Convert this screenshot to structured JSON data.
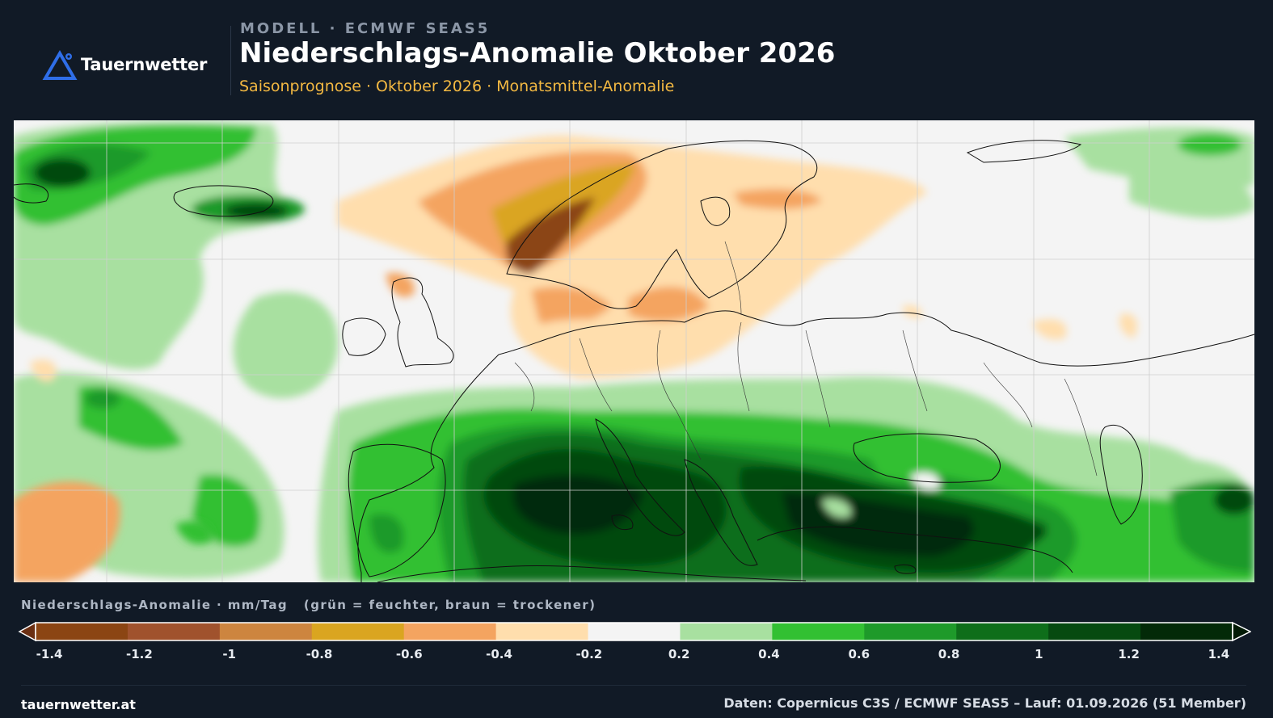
{
  "header": {
    "logo_text": "Tauernwetter",
    "model_label": "MODELL · ECMWF SEAS5",
    "title": "Niederschlags-Anomalie Oktober 2026",
    "subtitle": "Saisonprognose · Oktober 2026 · Monatsmittel-Anomalie"
  },
  "map": {
    "region": "Europe",
    "variable": "precipitation anomaly",
    "wet_regions": [
      "Mediterranean",
      "Italy",
      "Balkans",
      "Greece",
      "Turkey",
      "Black Sea",
      "North Atlantic",
      "Iceland"
    ],
    "dry_regions": [
      "Norway",
      "Scandinavia",
      "Baltic",
      "Poland",
      "Denmark"
    ]
  },
  "legend": {
    "title": "Niederschlags-Anomalie · mm/Tag   (grün = feuchter, braun = trockener)",
    "colors": [
      "#8b4513",
      "#a0522d",
      "#cd853f",
      "#daa520",
      "#f4a460",
      "#ffdead",
      "#f4f4f4",
      "#a8e0a0",
      "#32c032",
      "#1e9a2a",
      "#0e6e1a",
      "#064a10",
      "#032a08"
    ],
    "under_color": "#6b2f12",
    "over_color": "#021a05",
    "tick_labels": [
      "-1.4",
      "-1.2",
      "-1",
      "-0.8",
      "-0.6",
      "-0.4",
      "-0.2",
      "0.2",
      "0.4",
      "0.6",
      "0.8",
      "1",
      "1.2",
      "1.4"
    ]
  },
  "footer": {
    "left": "tauernwetter.at",
    "right": "Daten: Copernicus C3S / ECMWF SEAS5 – Lauf: 01.09.2026 (51 Member)"
  }
}
